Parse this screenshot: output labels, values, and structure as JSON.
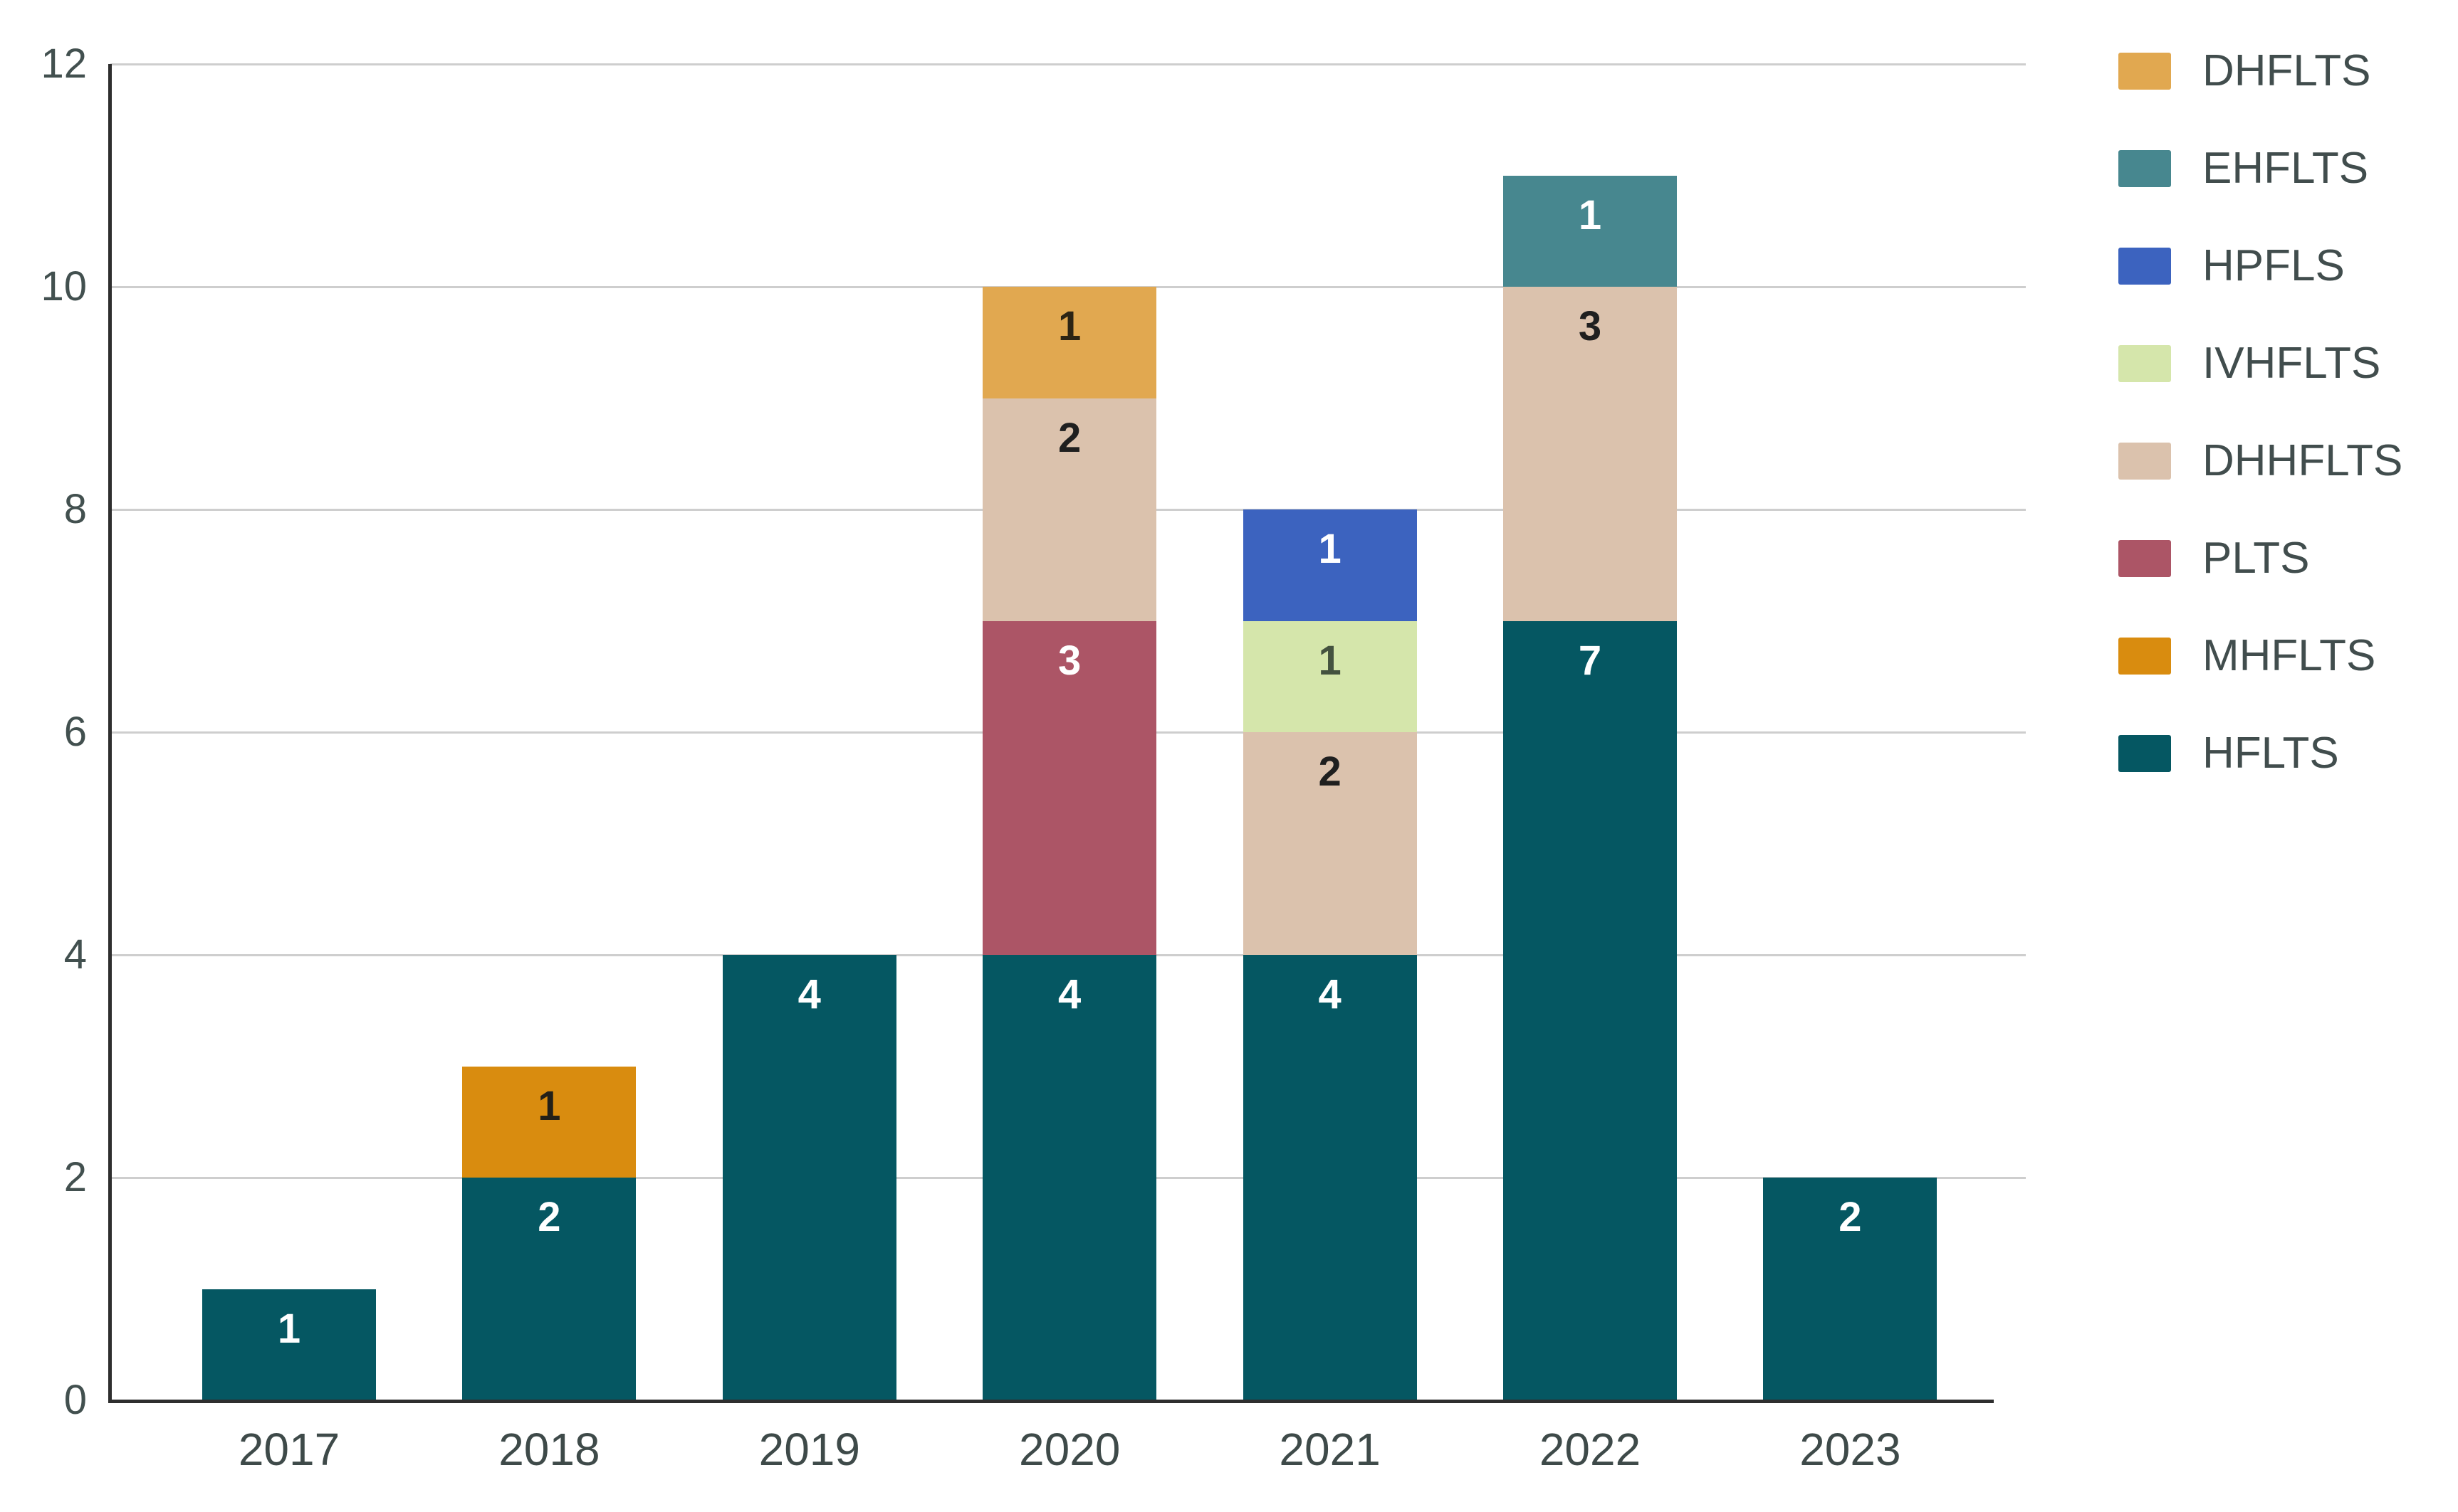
{
  "chart_data": {
    "type": "bar",
    "stacked": true,
    "title": "",
    "xlabel": "",
    "ylabel": "",
    "categories": [
      "2017",
      "2018",
      "2019",
      "2020",
      "2021",
      "2022",
      "2023"
    ],
    "series": [
      {
        "name": "HFLTS",
        "color": "#055762",
        "label_color": "#ffffff",
        "values": [
          1,
          2,
          4,
          4,
          4,
          7,
          2
        ]
      },
      {
        "name": "MHFLTS",
        "color": "#D98C0F",
        "label_color": "#232018",
        "values": [
          0,
          1,
          0,
          0,
          0,
          0,
          0
        ]
      },
      {
        "name": "PLTS",
        "color": "#AC5566",
        "label_color": "#ffffff",
        "values": [
          0,
          0,
          0,
          3,
          0,
          0,
          0
        ]
      },
      {
        "name": "DHHFLTS",
        "color": "#DBC2AD",
        "label_color": "#1f1f1f",
        "values": [
          0,
          0,
          0,
          2,
          2,
          3,
          0
        ]
      },
      {
        "name": "IVHFLTS",
        "color": "#D5E6AB",
        "label_color": "#44523f",
        "values": [
          0,
          0,
          0,
          0,
          1,
          0,
          0
        ]
      },
      {
        "name": "HPFLS",
        "color": "#3C63BF",
        "label_color": "#ffffff",
        "values": [
          0,
          0,
          0,
          0,
          1,
          0,
          0
        ]
      },
      {
        "name": "EHFLTS",
        "color": "#47878F",
        "label_color": "#ffffff",
        "values": [
          0,
          0,
          0,
          0,
          0,
          1,
          0
        ]
      },
      {
        "name": "DHFLTS",
        "color": "#E1A850",
        "label_color": "#2c2414",
        "values": [
          0,
          0,
          0,
          1,
          0,
          0,
          0
        ]
      }
    ],
    "legend": [
      "DHFLTS",
      "EHFLTS",
      "HPFLS",
      "IVHFLTS",
      "DHHFLTS",
      "PLTS",
      "MHFLTS",
      "HFLTS"
    ],
    "legend_position": "right",
    "y_ticks": [
      0,
      2,
      4,
      6,
      8,
      10,
      12
    ],
    "ylim": [
      0,
      12
    ],
    "grid": true
  },
  "colors": {
    "background": "#ffffff",
    "gridline": "#CECECE",
    "axis": "#2E2E2E",
    "y_tick_text": "#42504F",
    "x_tick_text": "#3E4A49",
    "legend_text": "#414D4D"
  }
}
